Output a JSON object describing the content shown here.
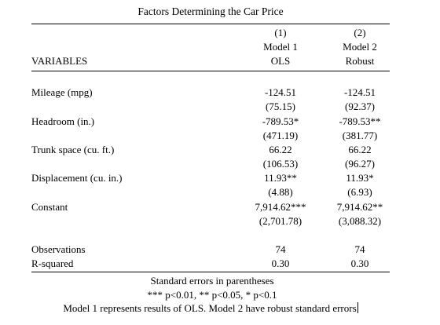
{
  "table": {
    "title": "Factors Determining the Car Price",
    "header": {
      "variables_label": "VARIABLES",
      "col1_number": "(1)",
      "col1_name": "Model 1",
      "col1_method": "OLS",
      "col2_number": "(2)",
      "col2_name": "Model 2",
      "col2_method": "Robust"
    },
    "rows": [
      {
        "label": "Mileage (mpg)",
        "m1_coef": "-124.51",
        "m2_coef": "-124.51",
        "m1_se": "(75.15)",
        "m2_se": "(92.37)"
      },
      {
        "label": "Headroom (in.)",
        "m1_coef": "-789.53*",
        "m2_coef": "-789.53**",
        "m1_se": "(471.19)",
        "m2_se": "(381.77)"
      },
      {
        "label": "Trunk space (cu. ft.)",
        "m1_coef": "66.22",
        "m2_coef": "66.22",
        "m1_se": "(106.53)",
        "m2_se": "(96.27)"
      },
      {
        "label": "Displacement (cu. in.)",
        "m1_coef": "11.93**",
        "m2_coef": "11.93*",
        "m1_se": "(4.88)",
        "m2_se": "(6.93)"
      },
      {
        "label": "Constant",
        "m1_coef": "7,914.62***",
        "m2_coef": "7,914.62**",
        "m1_se": "(2,701.78)",
        "m2_se": "(3,088.32)"
      }
    ],
    "stats": [
      {
        "label": "Observations",
        "m1": "74",
        "m2": "74"
      },
      {
        "label": "R-squared",
        "m1": "0.30",
        "m2": "0.30"
      }
    ],
    "notes": [
      "Standard errors in parentheses",
      "*** p<0.01, ** p<0.05, * p<0.1",
      "Model 1 represents results of OLS. Model 2 have robust standard errors"
    ]
  }
}
